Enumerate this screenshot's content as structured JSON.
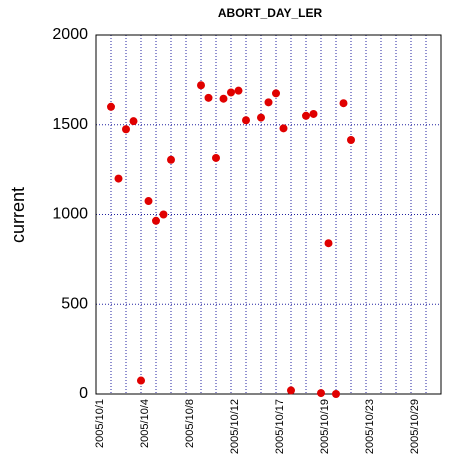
{
  "chart_data": {
    "type": "scatter",
    "title": "ABORT_DAY_LER",
    "y_label": "current",
    "categories": [
      "2005/10/1",
      null,
      null,
      null,
      null,
      null,
      "2005/10/4",
      null,
      null,
      null,
      null,
      null,
      "2005/10/8",
      null,
      null,
      null,
      null,
      null,
      "2005/10/12",
      null,
      null,
      null,
      null,
      null,
      "2005/10/17",
      null,
      null,
      null,
      null,
      null,
      "2005/10/19",
      null,
      null,
      null,
      null,
      null,
      "2005/10/23",
      null,
      null,
      null,
      null,
      null,
      "2005/10/29",
      null,
      null,
      null
    ],
    "values": [
      null,
      null,
      1600,
      1200,
      1475,
      1520,
      75,
      1075,
      965,
      1000,
      1305,
      null,
      null,
      null,
      1720,
      1650,
      1315,
      1645,
      1680,
      1690,
      1525,
      null,
      1540,
      1625,
      1675,
      1480,
      20,
      null,
      1550,
      1560,
      5,
      840,
      0,
      1620,
      1415,
      null,
      null,
      null,
      null,
      null,
      null,
      null,
      null,
      null,
      null,
      null
    ],
    "color": "#e00000",
    "ylim": [
      0,
      2000
    ],
    "yticks": [
      0,
      500,
      1000,
      1500,
      2000
    ],
    "grid": true
  }
}
